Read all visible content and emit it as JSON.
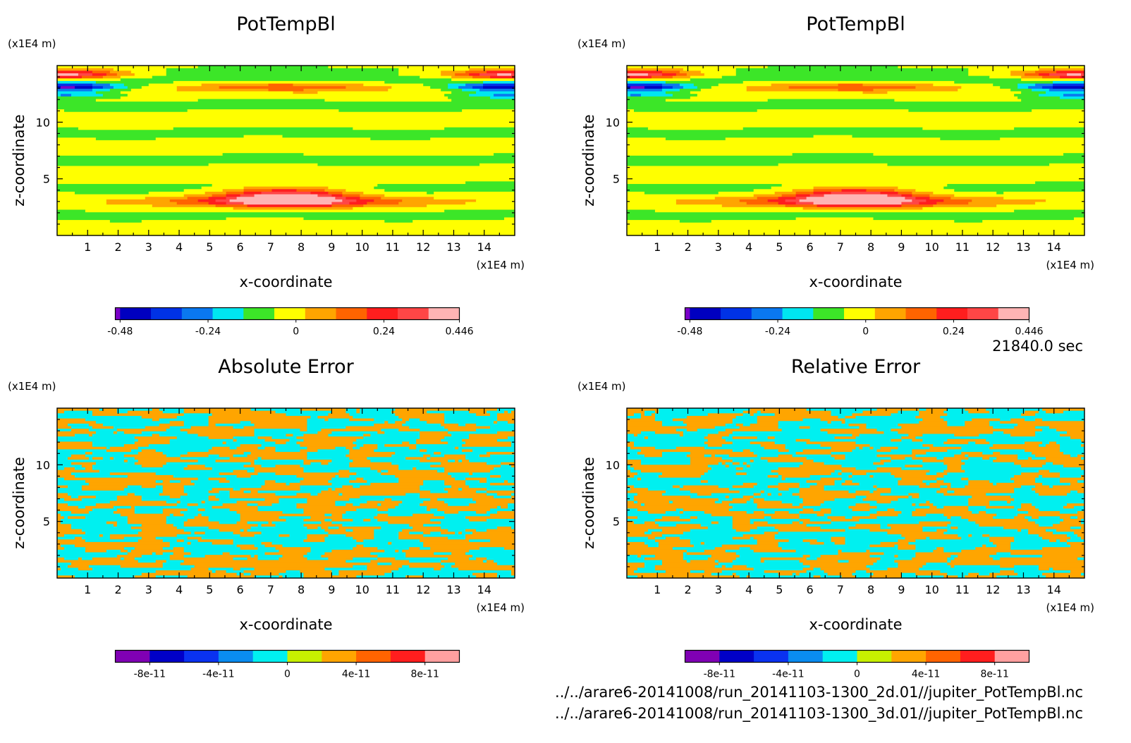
{
  "time_label": "21840.0 sec",
  "files": [
    "../../arare6-20141008/run_20141103-1300_2d.01//jupiter_PotTempBl.nc",
    "../../arare6-20141008/run_20141103-1300_3d.01//jupiter_PotTempBl.nc"
  ],
  "chart_data": [
    {
      "type": "heatmap",
      "title": "PotTempBl",
      "xlabel": "x-coordinate",
      "ylabel": "z-coordinate",
      "x_unit": "(x1E4 m)",
      "y_unit": "(x1E4 m)",
      "xlim": [
        0,
        15
      ],
      "ylim": [
        0,
        15
      ],
      "xticks": [
        1,
        2,
        3,
        4,
        5,
        6,
        7,
        8,
        9,
        10,
        11,
        12,
        13,
        14
      ],
      "yticks": [
        5,
        10
      ],
      "field": "potential-temperature",
      "colorbar": {
        "ticks": [
          "-0.48",
          "-0.24",
          "0",
          "0.24",
          "0.446"
        ],
        "tick_values": [
          -0.48,
          -0.24,
          0,
          0.24,
          0.446
        ],
        "range": [
          -0.5,
          0.446
        ],
        "colors": [
          "#7a00c8",
          "#0000c0",
          "#0032e6",
          "#0a78f0",
          "#00e6f0",
          "#3ce628",
          "#ffff00",
          "#ffa500",
          "#ff6400",
          "#ff1e1e",
          "#ff4646",
          "#ffb4b4"
        ]
      }
    },
    {
      "type": "heatmap",
      "title": "PotTempBl",
      "xlabel": "x-coordinate",
      "ylabel": "z-coordinate",
      "x_unit": "(x1E4 m)",
      "y_unit": "(x1E4 m)",
      "xlim": [
        0,
        15
      ],
      "ylim": [
        0,
        15
      ],
      "xticks": [
        1,
        2,
        3,
        4,
        5,
        6,
        7,
        8,
        9,
        10,
        11,
        12,
        13,
        14
      ],
      "yticks": [
        5,
        10
      ],
      "field": "potential-temperature",
      "colorbar": {
        "ticks": [
          "-0.48",
          "-0.24",
          "0",
          "0.24",
          "0.446"
        ],
        "tick_values": [
          -0.48,
          -0.24,
          0,
          0.24,
          0.446
        ],
        "range": [
          -0.5,
          0.446
        ],
        "colors": [
          "#7a00c8",
          "#0000c0",
          "#0032e6",
          "#0a78f0",
          "#00e6f0",
          "#3ce628",
          "#ffff00",
          "#ffa500",
          "#ff6400",
          "#ff1e1e",
          "#ff4646",
          "#ffb4b4"
        ]
      }
    },
    {
      "type": "heatmap",
      "title": "Absolute Error",
      "xlabel": "x-coordinate",
      "ylabel": "z-coordinate",
      "x_unit": "(x1E4 m)",
      "y_unit": "(x1E4 m)",
      "xlim": [
        0,
        15
      ],
      "ylim": [
        0,
        15
      ],
      "xticks": [
        1,
        2,
        3,
        4,
        5,
        6,
        7,
        8,
        9,
        10,
        11,
        12,
        13,
        14
      ],
      "yticks": [
        5,
        10
      ],
      "field": "noise",
      "seed": 17,
      "colorbar": {
        "ticks": [
          "-8e-11",
          "-4e-11",
          "0",
          "4e-11",
          "8e-11"
        ],
        "tick_values": [
          -8e-11,
          -4e-11,
          0,
          4e-11,
          8e-11
        ],
        "range": [
          -1e-10,
          1e-10
        ],
        "colors": [
          "#8000b4",
          "#0000c8",
          "#0a32f0",
          "#0a8cf0",
          "#00f0f0",
          "#c8f000",
          "#ffa500",
          "#ff6400",
          "#ff1e1e",
          "#ffa0a0"
        ]
      }
    },
    {
      "type": "heatmap",
      "title": "Relative Error",
      "xlabel": "x-coordinate",
      "ylabel": "z-coordinate",
      "x_unit": "(x1E4 m)",
      "y_unit": "(x1E4 m)",
      "xlim": [
        0,
        15
      ],
      "ylim": [
        0,
        15
      ],
      "xticks": [
        1,
        2,
        3,
        4,
        5,
        6,
        7,
        8,
        9,
        10,
        11,
        12,
        13,
        14
      ],
      "yticks": [
        5,
        10
      ],
      "field": "noise",
      "seed": 53,
      "colorbar": {
        "ticks": [
          "-8e-11",
          "-4e-11",
          "0",
          "4e-11",
          "8e-11"
        ],
        "tick_values": [
          -8e-11,
          -4e-11,
          0,
          4e-11,
          8e-11
        ],
        "range": [
          -1e-10,
          1e-10
        ],
        "colors": [
          "#8000b4",
          "#0000c8",
          "#0a32f0",
          "#0a8cf0",
          "#00f0f0",
          "#c8f000",
          "#ffa500",
          "#ff6400",
          "#ff1e1e",
          "#ffa0a0"
        ]
      }
    }
  ]
}
